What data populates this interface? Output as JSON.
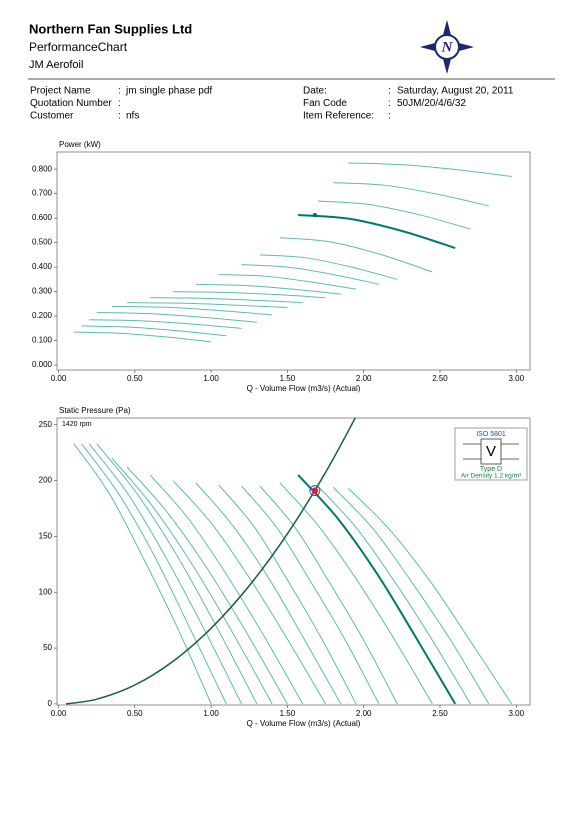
{
  "header": {
    "company": "Northern Fan Supplies Ltd",
    "title": "PerformanceChart",
    "subtitle": "JM Aerofoil",
    "logo_letter": "N"
  },
  "info": {
    "separator": ":",
    "left": [
      {
        "label": "Project Name",
        "value": "jm single phase pdf"
      },
      {
        "label": "Quotation Number"
      },
      {
        "label": "Customer",
        "value": "nfs"
      }
    ],
    "right": [
      {
        "label": "Date:",
        "value": "Saturday, August 20, 2011"
      },
      {
        "label": "Fan Code",
        "value": "50JM/20/4/6/32"
      },
      {
        "label": "Item Reference:"
      }
    ]
  },
  "chart_data": [
    {
      "type": "line",
      "y_label": "Power (kW)",
      "x_label": "Q - Volume Flow (m3/s) (Actual)",
      "xlim": [
        -0.01,
        3.09
      ],
      "ylim": [
        -0.02,
        0.87
      ],
      "xticks": [
        {
          "value": 0,
          "label": "0.00"
        },
        {
          "value": 0.5,
          "label": "0.50"
        },
        {
          "value": 1,
          "label": "1.00"
        },
        {
          "value": 1.5,
          "label": "1.50"
        },
        {
          "value": 2,
          "label": "2.00"
        },
        {
          "value": 2.5,
          "label": "2.50"
        },
        {
          "value": 3,
          "label": "3.00"
        }
      ],
      "yticks": [
        {
          "value": 0,
          "label": "0.000"
        },
        {
          "value": 0.1,
          "label": "0.100"
        },
        {
          "value": 0.2,
          "label": "0.200"
        },
        {
          "value": 0.3,
          "label": "0.300"
        },
        {
          "value": 0.4,
          "label": "0.400"
        },
        {
          "value": 0.5,
          "label": "0.500"
        },
        {
          "value": 0.6,
          "label": "0.600"
        },
        {
          "value": 0.7,
          "label": "0.700"
        },
        {
          "value": 0.8,
          "label": "0.800"
        }
      ],
      "series": [
        {
          "color": "#5fbab2",
          "line_width": 1,
          "x": [
            0.1,
            0.4,
            0.7,
            1.0
          ],
          "values": [
            0.135,
            0.13,
            0.115,
            0.095
          ]
        },
        {
          "color": "#5fbab2",
          "line_width": 1,
          "x": [
            0.15,
            0.47,
            0.78,
            1.1
          ],
          "values": [
            0.16,
            0.155,
            0.14,
            0.12
          ]
        },
        {
          "color": "#5fbab2",
          "line_width": 1,
          "x": [
            0.2,
            0.53,
            0.87,
            1.2
          ],
          "values": [
            0.185,
            0.181,
            0.168,
            0.15
          ]
        },
        {
          "color": "#5fbab2",
          "line_width": 1,
          "x": [
            0.25,
            0.6,
            0.95,
            1.3
          ],
          "values": [
            0.215,
            0.21,
            0.195,
            0.175
          ]
        },
        {
          "color": "#5fbab2",
          "line_width": 1,
          "x": [
            0.35,
            0.7,
            1.05,
            1.4
          ],
          "values": [
            0.24,
            0.236,
            0.223,
            0.205
          ]
        },
        {
          "color": "#5fbab2",
          "line_width": 1,
          "x": [
            0.45,
            0.8,
            1.15,
            1.5
          ],
          "values": [
            0.255,
            0.253,
            0.245,
            0.235
          ]
        },
        {
          "color": "#5fbab2",
          "line_width": 1,
          "x": [
            0.6,
            0.93,
            1.27,
            1.6
          ],
          "values": [
            0.275,
            0.273,
            0.265,
            0.255
          ]
        },
        {
          "color": "#5fbab2",
          "line_width": 1,
          "x": [
            0.75,
            1.08,
            1.42,
            1.75
          ],
          "values": [
            0.3,
            0.297,
            0.288,
            0.275
          ]
        },
        {
          "color": "#5fbab2",
          "line_width": 1,
          "x": [
            0.9,
            1.22,
            1.53,
            1.85
          ],
          "values": [
            0.33,
            0.325,
            0.31,
            0.29
          ]
        },
        {
          "color": "#5fbab2",
          "line_width": 1,
          "x": [
            1.05,
            1.35,
            1.65,
            1.95
          ],
          "values": [
            0.37,
            0.363,
            0.34,
            0.31
          ]
        },
        {
          "color": "#5fbab2",
          "line_width": 1,
          "x": [
            1.2,
            1.5,
            1.8,
            2.1
          ],
          "values": [
            0.41,
            0.4,
            0.37,
            0.33
          ]
        },
        {
          "color": "#5fbab2",
          "line_width": 1,
          "x": [
            1.32,
            1.62,
            1.92,
            2.22
          ],
          "values": [
            0.45,
            0.438,
            0.4,
            0.35
          ]
        },
        {
          "color": "#5fbab2",
          "line_width": 1,
          "x": [
            1.45,
            1.78,
            2.12,
            2.45
          ],
          "values": [
            0.52,
            0.503,
            0.45,
            0.38
          ]
        },
        {
          "color": "#00796b",
          "line_width": 2,
          "x": [
            1.57,
            1.91,
            2.26,
            2.6
          ],
          "values": [
            0.613,
            0.597,
            0.546,
            0.478
          ]
        },
        {
          "color": "#5fbab2",
          "line_width": 1,
          "x": [
            1.7,
            2.03,
            2.37,
            2.7
          ],
          "values": [
            0.67,
            0.656,
            0.613,
            0.555
          ]
        },
        {
          "color": "#5fbab2",
          "line_width": 1,
          "x": [
            1.8,
            2.14,
            2.48,
            2.82
          ],
          "values": [
            0.745,
            0.734,
            0.698,
            0.65
          ]
        },
        {
          "color": "#5fbab2",
          "line_width": 1,
          "x": [
            1.9,
            2.26,
            2.61,
            2.97
          ],
          "values": [
            0.825,
            0.818,
            0.798,
            0.77
          ]
        }
      ],
      "operating_point": {
        "x": 1.68,
        "y": 0.613,
        "color": "#00695c"
      }
    },
    {
      "type": "line",
      "y_label": "Static Pressure (Pa)",
      "x_label": "Q - Volume Flow (m3/s) (Actual)",
      "annotation": "1420 rpm",
      "iso_box": {
        "standard": "ISO 5801",
        "symbol": "V",
        "fan_type": "Type  D",
        "density": "Air Density  1.2  kg/m³"
      },
      "xlim": [
        -0.01,
        3.09
      ],
      "ylim": [
        -1,
        256
      ],
      "xticks": [
        {
          "value": 0,
          "label": "0.00"
        },
        {
          "value": 0.5,
          "label": "0.50"
        },
        {
          "value": 1,
          "label": "1.00"
        },
        {
          "value": 1.5,
          "label": "1.50"
        },
        {
          "value": 2,
          "label": "2.00"
        },
        {
          "value": 2.5,
          "label": "2.50"
        },
        {
          "value": 3,
          "label": "3.00"
        }
      ],
      "yticks": [
        0,
        50,
        100,
        150,
        200,
        250
      ],
      "series": [
        {
          "color": "#5fbab2",
          "line_width": 1,
          "x": [
            0.1,
            0.33,
            0.55,
            0.78,
            1.0
          ],
          "values": [
            233,
            189,
            132,
            68,
            0
          ]
        },
        {
          "color": "#5fbab2",
          "line_width": 1,
          "x": [
            0.15,
            0.39,
            0.63,
            0.86,
            1.1
          ],
          "values": [
            233,
            189,
            132,
            68,
            0
          ]
        },
        {
          "color": "#5fbab2",
          "line_width": 1,
          "x": [
            0.2,
            0.45,
            0.7,
            0.95,
            1.2
          ],
          "values": [
            233,
            189,
            132,
            68,
            0
          ]
        },
        {
          "color": "#5fbab2",
          "line_width": 1,
          "x": [
            0.25,
            0.51,
            0.78,
            1.04,
            1.3
          ],
          "values": [
            233,
            189,
            132,
            68,
            0
          ]
        },
        {
          "color": "#5fbab2",
          "line_width": 1,
          "x": [
            0.35,
            0.61,
            0.88,
            1.14,
            1.4
          ],
          "values": [
            220,
            178,
            124,
            64,
            0
          ]
        },
        {
          "color": "#5fbab2",
          "line_width": 1,
          "x": [
            0.45,
            0.71,
            0.98,
            1.24,
            1.5
          ],
          "values": [
            212,
            172,
            120,
            62,
            0
          ]
        },
        {
          "color": "#5fbab2",
          "line_width": 1,
          "x": [
            0.6,
            0.85,
            1.1,
            1.35,
            1.6
          ],
          "values": [
            205,
            166,
            116,
            60,
            0
          ]
        },
        {
          "color": "#5fbab2",
          "line_width": 1,
          "x": [
            0.75,
            1.0,
            1.25,
            1.5,
            1.75
          ],
          "values": [
            200,
            162,
            113,
            58,
            0
          ]
        },
        {
          "color": "#5fbab2",
          "line_width": 1,
          "x": [
            0.9,
            1.14,
            1.38,
            1.61,
            1.85
          ],
          "values": [
            198,
            160,
            112,
            58,
            0
          ]
        },
        {
          "color": "#5fbab2",
          "line_width": 1,
          "x": [
            1.05,
            1.28,
            1.5,
            1.73,
            1.95
          ],
          "values": [
            196,
            159,
            111,
            57,
            0
          ]
        },
        {
          "color": "#5fbab2",
          "line_width": 1,
          "x": [
            1.2,
            1.43,
            1.65,
            1.88,
            2.1
          ],
          "values": [
            195,
            158,
            110,
            57,
            0
          ]
        },
        {
          "color": "#5fbab2",
          "line_width": 1,
          "x": [
            1.32,
            1.55,
            1.77,
            2.0,
            2.22
          ],
          "values": [
            195,
            158,
            110,
            57,
            0
          ]
        },
        {
          "color": "#5fbab2",
          "line_width": 1,
          "x": [
            1.45,
            1.7,
            1.95,
            2.2,
            2.45
          ],
          "values": [
            198,
            160,
            112,
            58,
            0
          ]
        },
        {
          "color": "#00796b",
          "line_width": 2,
          "x": [
            1.57,
            1.83,
            2.09,
            2.34,
            2.6
          ],
          "values": [
            205,
            166,
            116,
            60,
            0
          ]
        },
        {
          "color": "#5fbab2",
          "line_width": 1,
          "x": [
            1.7,
            1.95,
            2.2,
            2.45,
            2.7
          ],
          "values": [
            195,
            158,
            110,
            57,
            0
          ]
        },
        {
          "color": "#5fbab2",
          "line_width": 1,
          "x": [
            1.8,
            2.06,
            2.31,
            2.57,
            2.82
          ],
          "values": [
            194,
            157,
            110,
            57,
            0
          ]
        },
        {
          "color": "#5fbab2",
          "line_width": 1,
          "x": [
            1.9,
            2.17,
            2.44,
            2.7,
            2.97
          ],
          "values": [
            193,
            156,
            109,
            56,
            0
          ]
        },
        {
          "color": "#14603a",
          "line_width": 1.5,
          "x": [
            0.05,
            0.25,
            0.5,
            0.75,
            1.0,
            1.25,
            1.5,
            1.75,
            1.95
          ],
          "values": [
            0,
            4.2,
            16.9,
            38.1,
            67.7,
            105.8,
            152.3,
            207.3,
            257.4
          ]
        }
      ],
      "operating_point": {
        "x": 1.68,
        "y": 191,
        "color": "#e02020",
        "ring_color": "#3050c0"
      }
    }
  ]
}
